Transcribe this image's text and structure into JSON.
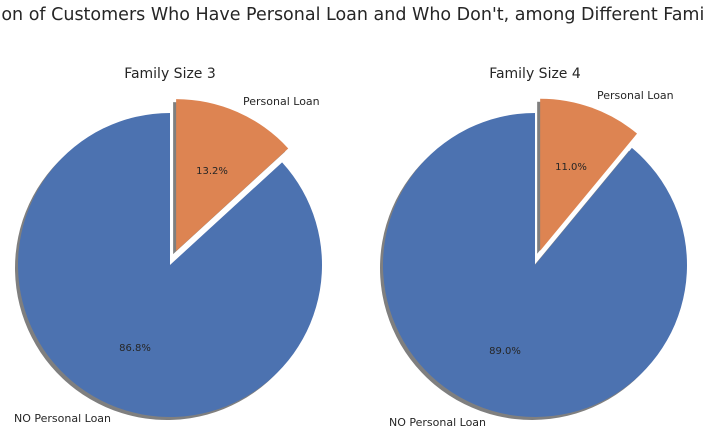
{
  "figure": {
    "title": "Proportion of Customers Who Have Personal Loan and Who Don't, among Different Family Sizes"
  },
  "chart_data": [
    {
      "type": "pie",
      "title": "Family Size 3",
      "labels": [
        "NO Personal Loan",
        "Personal Loan"
      ],
      "values": [
        86.8,
        13.2
      ],
      "value_labels": [
        "86.8%",
        "13.2%"
      ],
      "colors": [
        "#4c72b0",
        "#dd8452"
      ],
      "explode": [
        0,
        0.1
      ],
      "start_angle_deg": 90,
      "direction": "counterclockwise",
      "shadow": true
    },
    {
      "type": "pie",
      "title": "Family Size 4",
      "labels": [
        "NO Personal Loan",
        "Personal Loan"
      ],
      "values": [
        89.0,
        11.0
      ],
      "value_labels": [
        "89.0%",
        "11.0%"
      ],
      "colors": [
        "#4c72b0",
        "#dd8452"
      ],
      "explode": [
        0,
        0.1
      ],
      "start_angle_deg": 90,
      "direction": "counterclockwise",
      "shadow": true
    }
  ]
}
